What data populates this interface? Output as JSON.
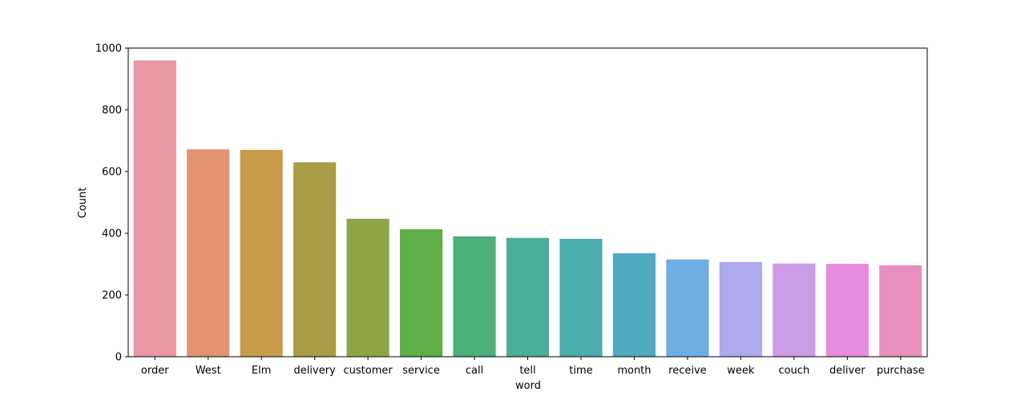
{
  "chart_data": {
    "type": "bar",
    "title": "",
    "xlabel": "word",
    "ylabel": "Count",
    "categories": [
      "order",
      "West",
      "Elm",
      "delivery",
      "customer",
      "service",
      "call",
      "tell",
      "time",
      "month",
      "receive",
      "week",
      "couch",
      "deliver",
      "purchase"
    ],
    "values": [
      960,
      672,
      670,
      630,
      447,
      413,
      390,
      385,
      382,
      335,
      315,
      307,
      302,
      301,
      296
    ],
    "colors": [
      "#ea96a3",
      "#e29470",
      "#c89b4b",
      "#a99d46",
      "#8ea546",
      "#5fae47",
      "#4bb079",
      "#4aae9a",
      "#4cacad",
      "#4ea9c1",
      "#6eaee2",
      "#adaaed",
      "#cd9ce7",
      "#e68cdc",
      "#e88fbe"
    ],
    "ylim": [
      0,
      1000
    ],
    "yticks": [
      0,
      200,
      400,
      600,
      800,
      1000
    ],
    "grid": false
  }
}
